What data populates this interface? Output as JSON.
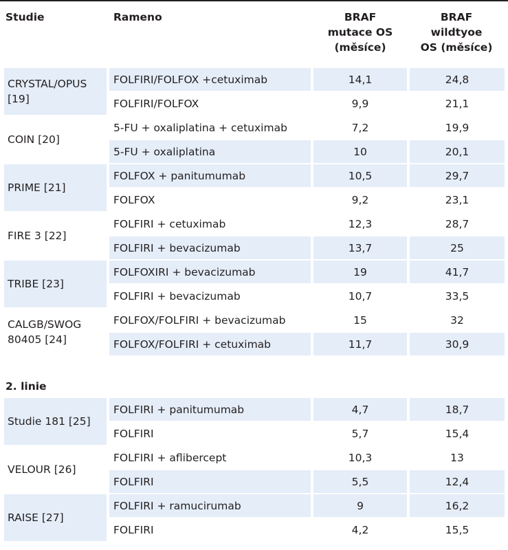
{
  "headers": {
    "study": "Studie",
    "arm": "Rameno",
    "braf_mut": [
      "BRAF",
      "mutace OS",
      "(měsíce)"
    ],
    "braf_wt": [
      "BRAF",
      "wildtyoe",
      "OS (měsíce)"
    ]
  },
  "first_line": [
    {
      "study_lines": [
        "CRYSTAL/OPUS",
        "[19]"
      ],
      "rows": [
        {
          "arm": "FOLFIRI/FOLFOX +cetuximab",
          "mut": "14,1",
          "wt": "24,8"
        },
        {
          "arm": "FOLFIRI/FOLFOX",
          "mut": "9,9",
          "wt": "21,1"
        }
      ]
    },
    {
      "study_lines": [
        "COIN [20]"
      ],
      "rows": [
        {
          "arm": "5-FU + oxaliplatina + cetuximab",
          "mut": "7,2",
          "wt": "19,9"
        },
        {
          "arm": "5-FU + oxaliplatina",
          "mut": "10",
          "wt": "20,1"
        }
      ]
    },
    {
      "study_lines": [
        "PRIME [21]"
      ],
      "rows": [
        {
          "arm": "FOLFOX + panitumumab",
          "mut": "10,5",
          "wt": "29,7"
        },
        {
          "arm": "FOLFOX",
          "mut": "9,2",
          "wt": "23,1"
        }
      ]
    },
    {
      "study_lines": [
        "FIRE 3 [22]"
      ],
      "rows": [
        {
          "arm": "FOLFIRI + cetuximab",
          "mut": "12,3",
          "wt": "28,7"
        },
        {
          "arm": "FOLFIRI + bevacizumab",
          "mut": "13,7",
          "wt": "25"
        }
      ]
    },
    {
      "study_lines": [
        "TRIBE [23]"
      ],
      "rows": [
        {
          "arm": "FOLFOXIRI + bevacizumab",
          "mut": "19",
          "wt": "41,7"
        },
        {
          "arm": "FOLFIRI + bevacizumab",
          "mut": "10,7",
          "wt": "33,5"
        }
      ]
    },
    {
      "study_lines": [
        "CALGB/SWOG",
        "80405 [24]"
      ],
      "rows": [
        {
          "arm": "FOLFOX/FOLFIRI + bevacizumab",
          "mut": "15",
          "wt": "32"
        },
        {
          "arm": "FOLFOX/FOLFIRI + cetuximab",
          "mut": "11,7",
          "wt": "30,9"
        }
      ]
    }
  ],
  "second_line_title": "2. linie",
  "second_line": [
    {
      "study_lines": [
        "Studie 181 [25]"
      ],
      "rows": [
        {
          "arm": "FOLFIRI + panitumumab",
          "mut": "4,7",
          "wt": "18,7"
        },
        {
          "arm": "FOLFIRI",
          "mut": "5,7",
          "wt": "15,4"
        }
      ]
    },
    {
      "study_lines": [
        "VELOUR [26]"
      ],
      "rows": [
        {
          "arm": "FOLFIRI + aflibercept",
          "mut": "10,3",
          "wt": "13"
        },
        {
          "arm": "FOLFIRI",
          "mut": "5,5",
          "wt": "12,4"
        }
      ]
    },
    {
      "study_lines": [
        "RAISE [27]"
      ],
      "rows": [
        {
          "arm": "FOLFIRI + ramucirumab",
          "mut": "9",
          "wt": "16,2"
        },
        {
          "arm": "FOLFIRI",
          "mut": "4,2",
          "wt": "15,5"
        }
      ]
    }
  ],
  "colors": {
    "shade": "#e4edf8",
    "text": "#231f20"
  }
}
